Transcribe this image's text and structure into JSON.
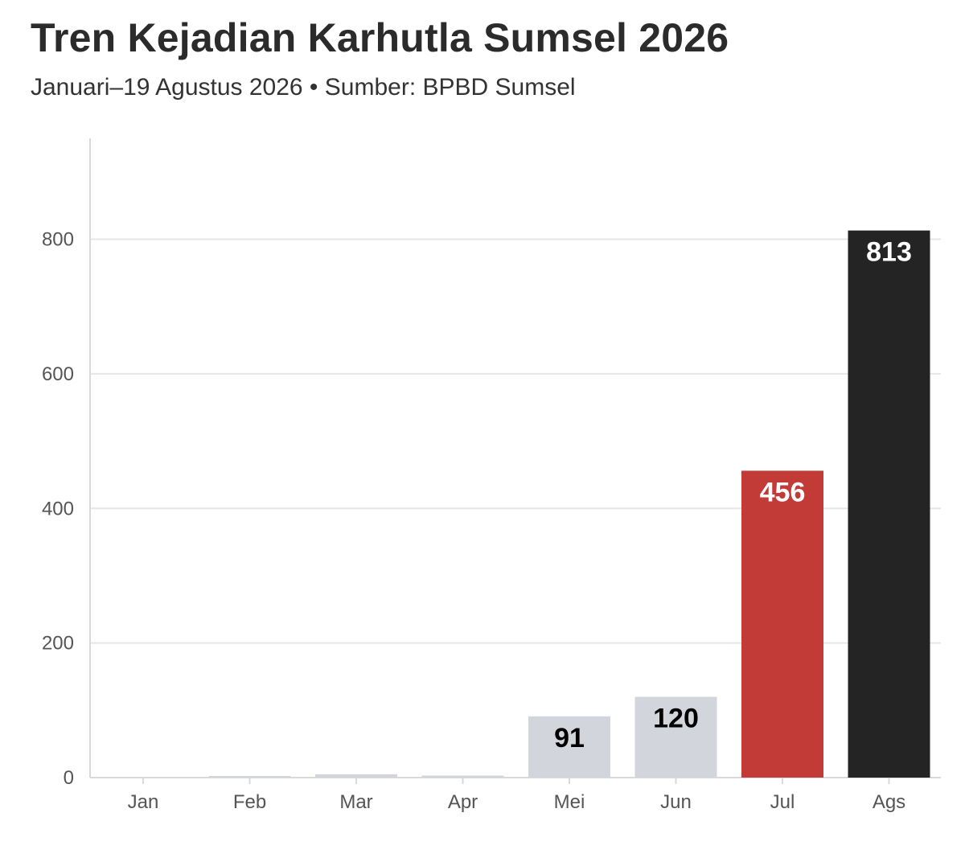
{
  "title": "Tren Kejadian Karhutla Sumsel 2026",
  "subtitle": "Januari–19 Agustus 2026 • Sumber: BPBD Sumsel",
  "colors": {
    "base": "#d3d5dc",
    "highlight": "#c23b37",
    "latest": "#242424",
    "grid": "#e6e6e6",
    "axis": "#d9d9d9"
  },
  "chart_data": {
    "type": "bar",
    "title": "Tren Kejadian Karhutla Sumsel 2026",
    "subtitle": "Januari–19 Agustus 2026 • Sumber: BPBD Sumsel",
    "xlabel": "",
    "ylabel": "",
    "categories": [
      "Jan",
      "Feb",
      "Mar",
      "Apr",
      "Mei",
      "Jun",
      "Jul",
      "Ags"
    ],
    "values": [
      0,
      1,
      5,
      3,
      91,
      120,
      456,
      813
    ],
    "data_labels": [
      "",
      "",
      "",
      "",
      "91",
      "120",
      "456",
      "813"
    ],
    "bar_colors": [
      "#d3d5dc",
      "#d3d5dc",
      "#d3d5dc",
      "#d3d5dc",
      "#d3d5dc",
      "#d3d5dc",
      "#c23b37",
      "#242424"
    ],
    "label_colors": [
      "#000000",
      "#000000",
      "#000000",
      "#000000",
      "#000000",
      "#000000",
      "#ffffff",
      "#ffffff"
    ],
    "y_ticks": [
      0,
      200,
      400,
      600,
      800
    ],
    "ylim": [
      0,
      950
    ],
    "grid": true,
    "legend": "none"
  }
}
